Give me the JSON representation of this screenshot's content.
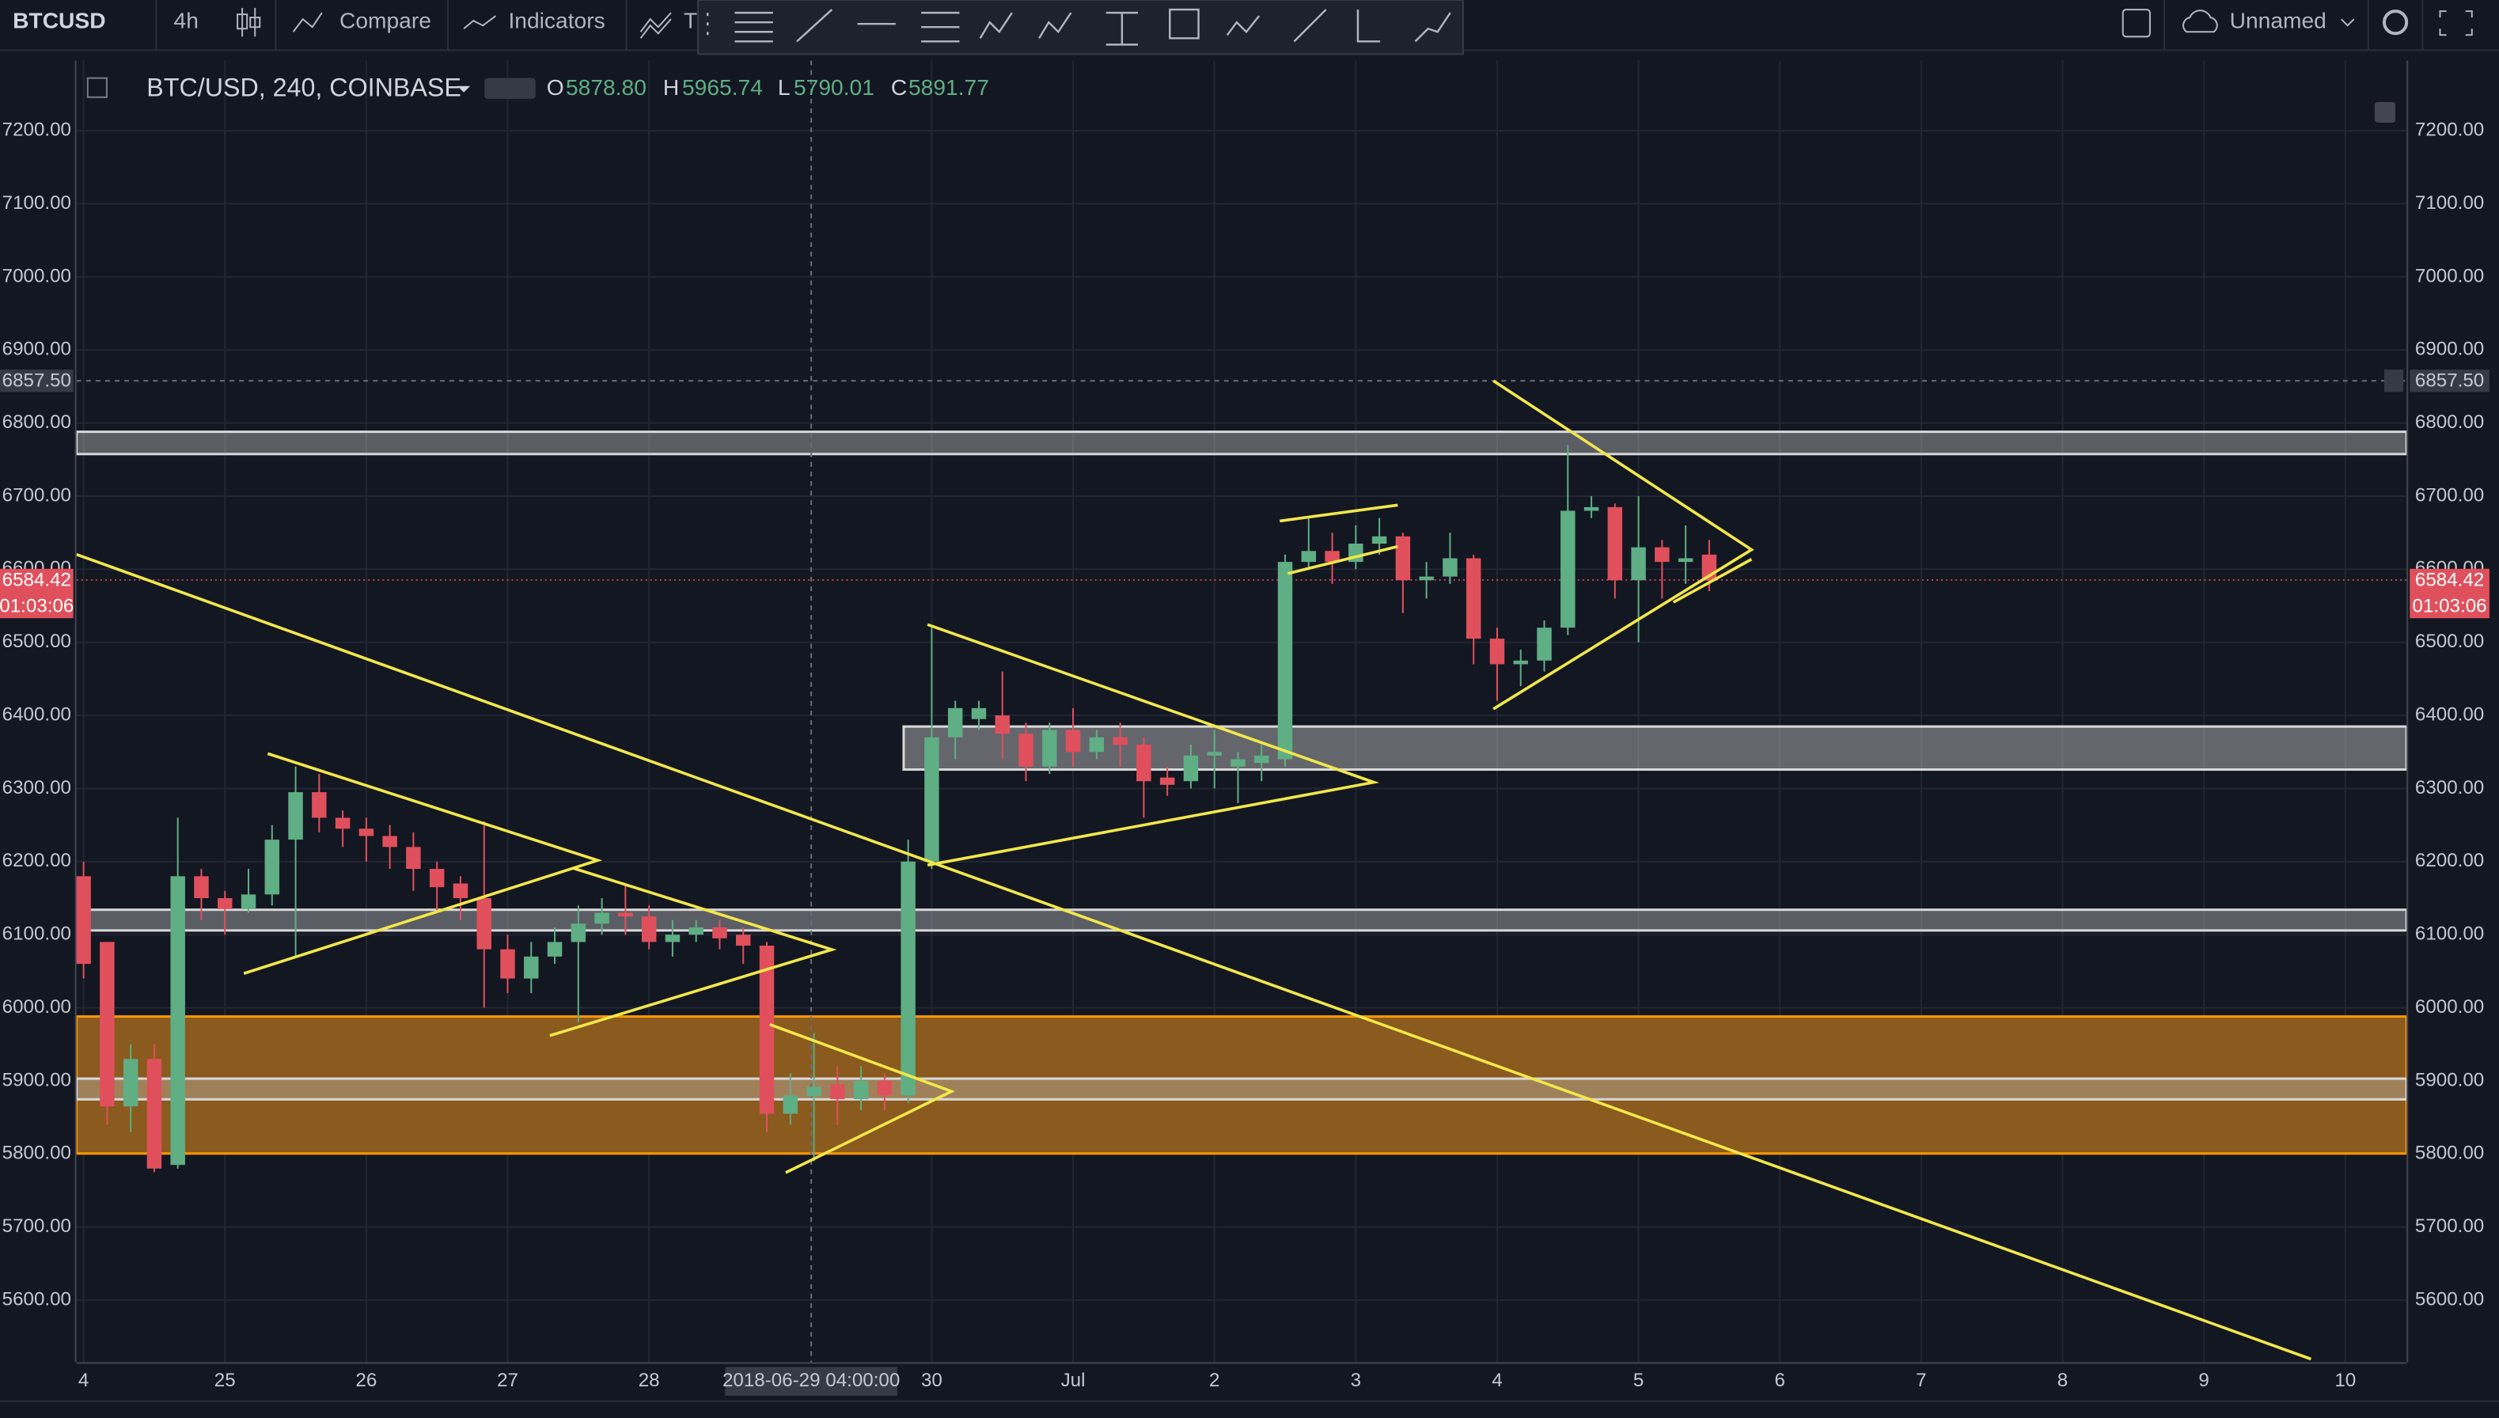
{
  "toolbar": {
    "symbol": "BTCUSD",
    "interval": "4h",
    "compare": "Compare",
    "indicators": "Indicators",
    "templates": "T",
    "layout_name": "Unnamed"
  },
  "legend": {
    "title": "BTC/USD, 240, COINBASE",
    "o_label": "O",
    "o": "5878.80",
    "h_label": "H",
    "h": "5965.74",
    "l_label": "L",
    "l": "5790.01",
    "c_label": "C",
    "c": "5891.77"
  },
  "crosshair_price": "6857.50",
  "crosshair_time": "2018-06-29 04:00:00",
  "last_price": "6584.42",
  "countdown": "01:03:06",
  "chart_data": {
    "type": "candlestick",
    "up_color": "#5fae84",
    "down_color": "#e0505c",
    "grid": true,
    "open": [
      6180,
      6090,
      5865,
      5930,
      5785,
      6180,
      6150,
      6135,
      6155,
      6230,
      6295,
      6260,
      6245,
      6235,
      6220,
      6190,
      6170,
      6150,
      6080,
      6040,
      6070,
      6090,
      6115,
      6130,
      6125,
      6090,
      6100,
      6110,
      6100,
      6085,
      5855,
      5878.8,
      5895,
      5875,
      5900,
      5880,
      6200,
      6370,
      6395,
      6400,
      6375,
      6330,
      6380,
      6350,
      6370,
      6360,
      6315,
      6310,
      6345,
      6330,
      6335,
      6340,
      6610,
      6625,
      6610,
      6635,
      6645,
      6585,
      6590,
      6615,
      6505,
      6470,
      6475,
      6520,
      6680,
      6685,
      6585,
      6630,
      6610,
      6620
    ],
    "high": [
      6200,
      6090,
      5950,
      5950,
      6260,
      6190,
      6160,
      6190,
      6250,
      6330,
      6320,
      6270,
      6260,
      6250,
      6240,
      6200,
      6180,
      6255,
      6100,
      6090,
      6110,
      6140,
      6150,
      6170,
      6140,
      6120,
      6120,
      6120,
      6110,
      6090,
      5910,
      5965.74,
      5920,
      5920,
      5910,
      6230,
      6520,
      6420,
      6420,
      6460,
      6390,
      6390,
      6410,
      6380,
      6390,
      6370,
      6330,
      6360,
      6380,
      6350,
      6360,
      6620,
      6670,
      6650,
      6660,
      6670,
      6650,
      6610,
      6650,
      6620,
      6520,
      6490,
      6530,
      6770,
      6700,
      6690,
      6700,
      6640,
      6660,
      6640
    ],
    "low": [
      6040,
      5840,
      5830,
      5775,
      5780,
      6120,
      6100,
      6130,
      6140,
      6070,
      6240,
      6220,
      6200,
      6190,
      6160,
      6130,
      6120,
      6000,
      6020,
      6020,
      6060,
      5980,
      6100,
      6100,
      6080,
      6070,
      6090,
      6080,
      6060,
      5830,
      5840,
      5790.01,
      5840,
      5860,
      5860,
      5870,
      6190,
      6340,
      6380,
      6340,
      6310,
      6320,
      6330,
      6340,
      6330,
      6260,
      6290,
      6300,
      6300,
      6280,
      6310,
      6330,
      6600,
      6580,
      6600,
      6620,
      6540,
      6560,
      6580,
      6470,
      6420,
      6440,
      6460,
      6510,
      6670,
      6560,
      6500,
      6560,
      6580,
      6570
    ],
    "close": [
      6060,
      5865,
      5930,
      5780,
      6180,
      6150,
      6135,
      6155,
      6230,
      6295,
      6260,
      6245,
      6235,
      6220,
      6190,
      6165,
      6150,
      6080,
      6040,
      6070,
      6090,
      6115,
      6130,
      6125,
      6090,
      6100,
      6110,
      6095,
      6085,
      5855,
      5880,
      5891.77,
      5875,
      5900,
      5880,
      6200,
      6370,
      6410,
      6410,
      6375,
      6330,
      6380,
      6350,
      6370,
      6360,
      6310,
      6305,
      6345,
      6350,
      6340,
      6345,
      6610,
      6625,
      6610,
      6635,
      6645,
      6585,
      6590,
      6615,
      6505,
      6470,
      6475,
      6520,
      6680,
      6685,
      6585,
      6630,
      6610,
      6615,
      6584.42
    ],
    "xlim": [
      -0.3,
      98.6
    ],
    "xticks": [
      {
        "value": 0,
        "label": "4"
      },
      {
        "value": 6,
        "label": "25"
      },
      {
        "value": 12,
        "label": "26"
      },
      {
        "value": 18,
        "label": "27"
      },
      {
        "value": 24,
        "label": "28"
      },
      {
        "value": 36,
        "label": "30"
      },
      {
        "value": 42,
        "label": "Jul"
      },
      {
        "value": 48,
        "label": "2"
      },
      {
        "value": 54,
        "label": "3"
      },
      {
        "value": 60,
        "label": "4"
      },
      {
        "value": 66,
        "label": "5"
      },
      {
        "value": 72,
        "label": "6"
      },
      {
        "value": 78,
        "label": "7"
      },
      {
        "value": 84,
        "label": "8"
      },
      {
        "value": 90,
        "label": "9"
      },
      {
        "value": 96,
        "label": "10"
      }
    ],
    "ylim": [
      5515,
      7296
    ],
    "yticks": [
      {
        "value": 5600,
        "label": "5600.00"
      },
      {
        "value": 5700,
        "label": "5700.00"
      },
      {
        "value": 5800,
        "label": "5800.00"
      },
      {
        "value": 5900,
        "label": "5900.00"
      },
      {
        "value": 6000,
        "label": "6000.00"
      },
      {
        "value": 6100,
        "label": "6100.00"
      },
      {
        "value": 6200,
        "label": "6200.00"
      },
      {
        "value": 6300,
        "label": "6300.00"
      },
      {
        "value": 6400,
        "label": "6400.00"
      },
      {
        "value": 6500,
        "label": "6500.00"
      },
      {
        "value": 6600,
        "label": "6600.00"
      },
      {
        "value": 6700,
        "label": "6700.00"
      },
      {
        "value": 6800,
        "label": "6800.00"
      },
      {
        "value": 6900,
        "label": "6900.00"
      },
      {
        "value": 7000,
        "label": "7000.00"
      },
      {
        "value": 7100,
        "label": "7100.00"
      },
      {
        "value": 7200,
        "label": "7200.00"
      }
    ]
  }
}
